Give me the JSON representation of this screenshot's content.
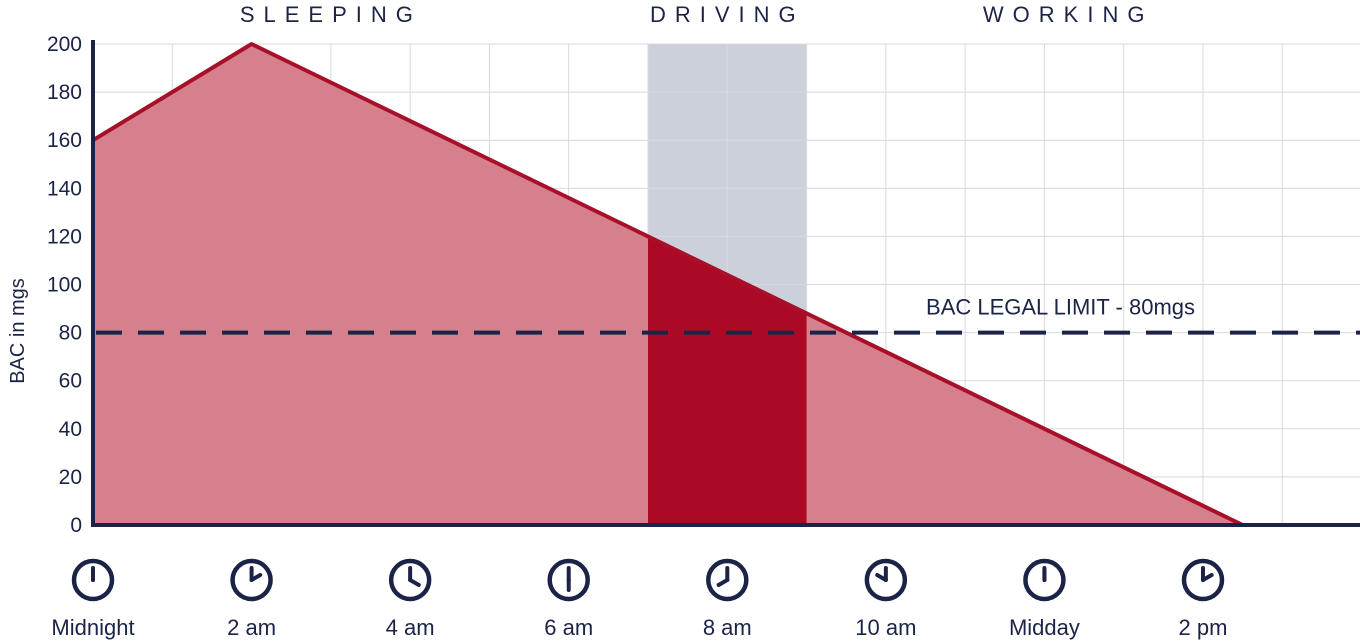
{
  "chart_data": {
    "type": "area",
    "ylabel": "BAC in mgs",
    "ylim": [
      0,
      200
    ],
    "yticks": [
      0,
      20,
      40,
      60,
      80,
      100,
      120,
      140,
      160,
      180,
      200
    ],
    "xlim": [
      0,
      16
    ],
    "x_ticks": [
      {
        "x": 0,
        "label": "Midnight",
        "clock_hour": 12
      },
      {
        "x": 2,
        "label": "2 am",
        "clock_hour": 2
      },
      {
        "x": 4,
        "label": "4 am",
        "clock_hour": 4
      },
      {
        "x": 6,
        "label": "6 am",
        "clock_hour": 6
      },
      {
        "x": 8,
        "label": "8 am",
        "clock_hour": 8
      },
      {
        "x": 10,
        "label": "10 am",
        "clock_hour": 10
      },
      {
        "x": 12,
        "label": "Midday",
        "clock_hour": 12
      },
      {
        "x": 14,
        "label": "2 pm",
        "clock_hour": 2
      }
    ],
    "series": [
      {
        "x": [
          0,
          2,
          14.5
        ],
        "y": [
          160,
          200,
          0
        ]
      }
    ],
    "driving_window": {
      "x": [
        7,
        9
      ]
    },
    "reference_line": {
      "y": 80,
      "label": "BAC LEGAL LIMIT - 80mgs"
    },
    "phases": [
      {
        "label": "SLEEPING",
        "x": 3
      },
      {
        "label": "DRIVING",
        "x": 8
      },
      {
        "label": "WORKING",
        "x": 12.3
      }
    ],
    "grid": true,
    "colors": {
      "area_fill": "#d5808c",
      "line": "#a8102a",
      "driving_bac_fill": "#ac0a24",
      "driving_band": "#ccd0db",
      "axis": "#1b2447",
      "grid": "#d8d9e0",
      "limit_line": "#1b2447"
    }
  }
}
